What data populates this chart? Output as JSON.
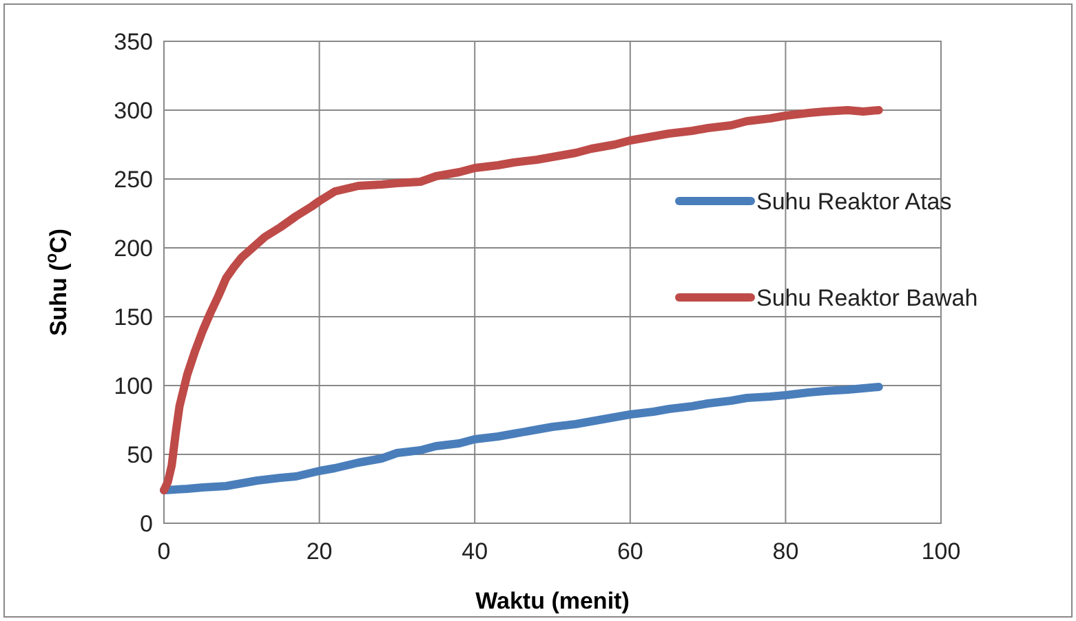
{
  "chart_data": {
    "type": "line",
    "xlabel": "Waktu (menit)",
    "ylabel": "Suhu ($^{o}$C)",
    "xlim": [
      0,
      100
    ],
    "ylim": [
      0,
      350
    ],
    "xticks": [
      0,
      20,
      40,
      60,
      80,
      100
    ],
    "yticks": [
      0,
      50,
      100,
      150,
      200,
      250,
      300,
      350
    ],
    "grid": true,
    "legend": "right",
    "marker": "none",
    "line_style": "solid",
    "series": [
      {
        "name": "Suhu Reaktor Atas",
        "color": "#4a7ebb",
        "x": [
          0,
          3,
          5,
          8,
          10,
          12,
          15,
          17,
          20,
          22,
          25,
          28,
          30,
          33,
          35,
          38,
          40,
          43,
          45,
          48,
          50,
          53,
          55,
          58,
          60,
          63,
          65,
          68,
          70,
          73,
          75,
          78,
          80,
          83,
          85,
          88,
          90,
          92
        ],
        "values": [
          24,
          25,
          26,
          27,
          29,
          31,
          33,
          34,
          38,
          40,
          44,
          47,
          51,
          53,
          56,
          58,
          61,
          63,
          65,
          68,
          70,
          72,
          74,
          77,
          79,
          81,
          83,
          85,
          87,
          89,
          91,
          92,
          93,
          95,
          96,
          97,
          98,
          99
        ]
      },
      {
        "name": "Suhu Reaktor Bawah",
        "color": "#be4b48",
        "x": [
          0,
          0.5,
          1,
          1.5,
          2,
          3,
          4,
          5,
          6,
          7,
          8,
          9,
          10,
          12,
          13,
          15,
          17,
          19,
          20,
          22,
          25,
          28,
          30,
          33,
          35,
          38,
          40,
          43,
          45,
          48,
          50,
          53,
          55,
          58,
          60,
          63,
          65,
          68,
          70,
          73,
          75,
          78,
          80,
          83,
          85,
          88,
          90,
          92
        ],
        "values": [
          24,
          30,
          42,
          65,
          85,
          108,
          125,
          140,
          153,
          165,
          178,
          186,
          193,
          203,
          208,
          215,
          223,
          230,
          234,
          241,
          245,
          246,
          247,
          248,
          252,
          255,
          258,
          260,
          262,
          264,
          266,
          269,
          272,
          275,
          278,
          281,
          283,
          285,
          287,
          289,
          292,
          294,
          296,
          298,
          299,
          300,
          299,
          300
        ]
      }
    ]
  }
}
